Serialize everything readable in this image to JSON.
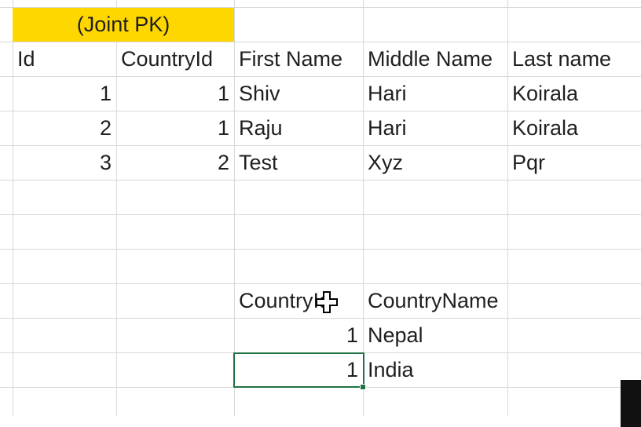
{
  "header_note": "(Joint PK)",
  "person_table": {
    "columns": [
      "Id",
      "CountryId",
      "First Name",
      "Middle Name",
      "Last name"
    ],
    "rows": [
      {
        "id": "1",
        "country_id": "1",
        "first_name": "Shiv",
        "middle_name": "Hari",
        "last_name": "Koirala"
      },
      {
        "id": "2",
        "country_id": "1",
        "first_name": "Raju",
        "middle_name": "Hari",
        "last_name": "Koirala"
      },
      {
        "id": "3",
        "country_id": "2",
        "first_name": "Test",
        "middle_name": "Xyz",
        "last_name": "Pqr"
      }
    ]
  },
  "country_table": {
    "columns": [
      "CountryId",
      "CountryName"
    ],
    "rows": [
      {
        "country_id": "1",
        "country_name": "Nepal"
      },
      {
        "country_id": "1",
        "country_name": "India"
      }
    ]
  },
  "colors": {
    "highlight_fill": "#ffd700",
    "selection_border": "#217346",
    "gridline": "#d8d8d8"
  },
  "icons": {
    "cursor": "move-cursor-icon"
  }
}
